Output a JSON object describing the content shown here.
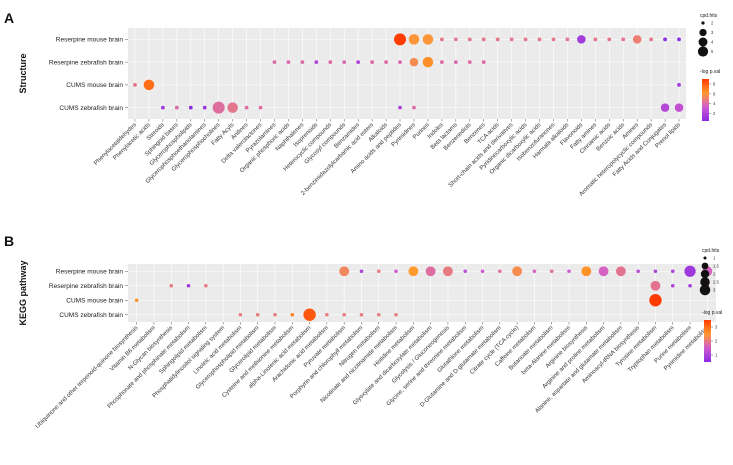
{
  "chart_data": [
    {
      "panel": "A",
      "type": "scatter",
      "ylabel": "Structure",
      "rows": [
        "Reserpine mouse brain",
        "Reserpine zebrafish brain",
        "CUMS mouse brain",
        "CUMS zebrafish brain"
      ],
      "columns": [
        "Phenylacetaldehydes",
        "Phenylacetic acids",
        "Steroids",
        "Sphingoid bases",
        "Glycerophospholipids",
        "Glycerophosphoethanolamines",
        "Glycerophosphocholines",
        "Fatty Acyls",
        "Anilines",
        "Delta valerolactones",
        "Pyrazolamines",
        "Organic phosphoric acids",
        "Naphthalenes",
        "Isoprenoids",
        "Heterocyclic compounds",
        "Glycosyl compounds",
        "Benzamides",
        "2-benzimidazolylcarbamic acid esters",
        "Alkaloids",
        "Amino acids and peptides",
        "Pyrimidines",
        "Purines",
        "Indoles",
        "Beta lactams",
        "Benzenediols",
        "Benzenes",
        "TCA acids",
        "Short-chain acids and derivatives",
        "Pyridinecarboxylic acids",
        "Organic dicarboxylic acids",
        "Isobenzofuranones",
        "Harmala alkaloids",
        "Flavonoids",
        "Fatty amines",
        "Cinnamic acids",
        "Benzoic acids",
        "Amines",
        "Aromatic heteropolycyclic compounds",
        "Fatty Acids and Conjugates",
        "Prenol lipids"
      ],
      "size_legend_title": "cpd.hits",
      "size_legend_values": [
        2,
        3,
        4,
        5
      ],
      "color_legend_title": "-log p.val",
      "color_legend_ticks": [
        2,
        4,
        6,
        8
      ],
      "color_range": [
        0.5,
        9
      ],
      "points": [
        {
          "row": 0,
          "col": 19,
          "hits": 5,
          "logp": 9
        },
        {
          "row": 0,
          "col": 20,
          "hits": 4,
          "logp": 6
        },
        {
          "row": 0,
          "col": 21,
          "hits": 4,
          "logp": 6
        },
        {
          "row": 0,
          "col": 22,
          "hits": 2,
          "logp": 4.5
        },
        {
          "row": 0,
          "col": 23,
          "hits": 2,
          "logp": 4.5
        },
        {
          "row": 0,
          "col": 24,
          "hits": 2,
          "logp": 4.5
        },
        {
          "row": 0,
          "col": 25,
          "hits": 2,
          "logp": 4.5
        },
        {
          "row": 0,
          "col": 26,
          "hits": 2,
          "logp": 4.5
        },
        {
          "row": 0,
          "col": 27,
          "hits": 2,
          "logp": 4.5
        },
        {
          "row": 0,
          "col": 28,
          "hits": 2,
          "logp": 4.5
        },
        {
          "row": 0,
          "col": 29,
          "hits": 2,
          "logp": 4.5
        },
        {
          "row": 0,
          "col": 30,
          "hits": 2,
          "logp": 4.5
        },
        {
          "row": 0,
          "col": 31,
          "hits": 2,
          "logp": 4.5
        },
        {
          "row": 0,
          "col": 32,
          "hits": 3,
          "logp": 1.5
        },
        {
          "row": 0,
          "col": 33,
          "hits": 2,
          "logp": 4.5
        },
        {
          "row": 0,
          "col": 34,
          "hits": 2,
          "logp": 4.5
        },
        {
          "row": 0,
          "col": 35,
          "hits": 2,
          "logp": 4.5
        },
        {
          "row": 0,
          "col": 36,
          "hits": 3,
          "logp": 5
        },
        {
          "row": 0,
          "col": 37,
          "hits": 2,
          "logp": 4.5
        },
        {
          "row": 0,
          "col": 38,
          "hits": 2,
          "logp": 0.5
        },
        {
          "row": 0,
          "col": 39,
          "hits": 2,
          "logp": 0.6
        },
        {
          "row": 1,
          "col": 10,
          "hits": 2,
          "logp": 4
        },
        {
          "row": 1,
          "col": 11,
          "hits": 2,
          "logp": 4
        },
        {
          "row": 1,
          "col": 12,
          "hits": 2,
          "logp": 4
        },
        {
          "row": 1,
          "col": 13,
          "hits": 2,
          "logp": 2
        },
        {
          "row": 1,
          "col": 14,
          "hits": 2,
          "logp": 4
        },
        {
          "row": 1,
          "col": 15,
          "hits": 2,
          "logp": 4
        },
        {
          "row": 1,
          "col": 16,
          "hits": 2,
          "logp": 2
        },
        {
          "row": 1,
          "col": 17,
          "hits": 2,
          "logp": 4
        },
        {
          "row": 1,
          "col": 18,
          "hits": 2,
          "logp": 4
        },
        {
          "row": 1,
          "col": 19,
          "hits": 2,
          "logp": 4
        },
        {
          "row": 1,
          "col": 20,
          "hits": 3,
          "logp": 5.5
        },
        {
          "row": 1,
          "col": 21,
          "hits": 4,
          "logp": 6.5
        },
        {
          "row": 1,
          "col": 22,
          "hits": 2,
          "logp": 4
        },
        {
          "row": 1,
          "col": 23,
          "hits": 2,
          "logp": 4
        },
        {
          "row": 1,
          "col": 24,
          "hits": 2,
          "logp": 4
        },
        {
          "row": 1,
          "col": 25,
          "hits": 2,
          "logp": 4
        },
        {
          "row": 2,
          "col": 0,
          "hits": 2,
          "logp": 4.5
        },
        {
          "row": 2,
          "col": 1,
          "hits": 4,
          "logp": 7.5
        },
        {
          "row": 2,
          "col": 39,
          "hits": 2,
          "logp": 1.5
        },
        {
          "row": 3,
          "col": 2,
          "hits": 2,
          "logp": 1.5
        },
        {
          "row": 3,
          "col": 3,
          "hits": 2,
          "logp": 4
        },
        {
          "row": 3,
          "col": 4,
          "hits": 2,
          "logp": 0.3
        },
        {
          "row": 3,
          "col": 5,
          "hits": 2,
          "logp": 1.2
        },
        {
          "row": 3,
          "col": 6,
          "hits": 5,
          "logp": 4.2
        },
        {
          "row": 3,
          "col": 7,
          "hits": 4,
          "logp": 4.5
        },
        {
          "row": 3,
          "col": 8,
          "hits": 2,
          "logp": 4.2
        },
        {
          "row": 3,
          "col": 9,
          "hits": 2,
          "logp": 4.2
        },
        {
          "row": 3,
          "col": 19,
          "hits": 2,
          "logp": 2
        },
        {
          "row": 3,
          "col": 20,
          "hits": 2,
          "logp": 4
        },
        {
          "row": 3,
          "col": 38,
          "hits": 3,
          "logp": 2.2
        },
        {
          "row": 3,
          "col": 39,
          "hits": 3,
          "logp": 2.8
        }
      ]
    },
    {
      "panel": "B",
      "type": "scatter",
      "ylabel": "KEGG pathway",
      "rows": [
        "Reserpine mouse brain",
        "Reserpine zebrafish brain",
        "CUMS mouse brain",
        "CUMS zebrafish brain"
      ],
      "columns": [
        "Ubiquinone and other terpenoid-quinone biosynthesis",
        "Vitamin B6 metabolism",
        "N-Glycan biosynthesis",
        "Phosphonate and phosphinate metabolism",
        "Sphingolipid metabolism",
        "Phosphatidylinositol signaling system",
        "Linoleic acid metabolism",
        "Glycerophospholipid metabolism",
        "Glycerolipid metabolism",
        "Cysteine and methionine metabolism",
        "alpha-Linolenic acid metabolism",
        "Arachidonic acid metabolism",
        "Pyruvate metabolism",
        "Porphyrin and chlorophyll metabolism",
        "Nitrogen metabolism",
        "Nicotinate and nicotinamide metabolism",
        "Histidine metabolism",
        "Glyoxylate and dicarboxylate metabolism",
        "Glycolysis / Gluconeogenesis",
        "Glycine, serine and threonine metabolism",
        "Glutathione metabolism",
        "D-Glutamine and D-glutamate metabolism",
        "Citrate cycle (TCA cycle)",
        "Caffeine metabolism",
        "Butanoate metabolism",
        "beta-Alanine metabolism",
        "Arginine biosynthesis",
        "Arginine and proline metabolism",
        "Alanine, aspartate and glutamate metabolism",
        "Aminoacyl-tRNA biosynthesis",
        "Tyrosine metabolism",
        "Tryptophan metabolism",
        "Purine metabolism",
        "Pyrimidine metabolism"
      ],
      "size_legend_title": "cpd.hits",
      "size_legend_values": [
        1.0,
        1.5,
        2.0,
        2.5,
        3.0
      ],
      "color_legend_title": "-log p.val",
      "color_legend_ticks": [
        1,
        2,
        3
      ],
      "color_range": [
        0.5,
        3.5
      ],
      "points": [
        {
          "row": 0,
          "col": 12,
          "hits": 2,
          "logp": 2.2
        },
        {
          "row": 0,
          "col": 13,
          "hits": 1,
          "logp": 1.0
        },
        {
          "row": 0,
          "col": 14,
          "hits": 1,
          "logp": 2.0
        },
        {
          "row": 0,
          "col": 15,
          "hits": 1,
          "logp": 1.5
        },
        {
          "row": 0,
          "col": 16,
          "hits": 2,
          "logp": 2.5
        },
        {
          "row": 0,
          "col": 17,
          "hits": 2,
          "logp": 1.8
        },
        {
          "row": 0,
          "col": 18,
          "hits": 2,
          "logp": 2.0
        },
        {
          "row": 0,
          "col": 19,
          "hits": 1,
          "logp": 1.2
        },
        {
          "row": 0,
          "col": 20,
          "hits": 1,
          "logp": 1.5
        },
        {
          "row": 0,
          "col": 21,
          "hits": 1,
          "logp": 1.8
        },
        {
          "row": 0,
          "col": 22,
          "hits": 2,
          "logp": 2.3
        },
        {
          "row": 0,
          "col": 23,
          "hits": 1,
          "logp": 1.6
        },
        {
          "row": 0,
          "col": 24,
          "hits": 1,
          "logp": 1.8
        },
        {
          "row": 0,
          "col": 25,
          "hits": 1,
          "logp": 1.5
        },
        {
          "row": 0,
          "col": 26,
          "hits": 2,
          "logp": 2.6
        },
        {
          "row": 0,
          "col": 27,
          "hits": 2,
          "logp": 1.6
        },
        {
          "row": 0,
          "col": 28,
          "hits": 2,
          "logp": 1.9
        },
        {
          "row": 0,
          "col": 29,
          "hits": 1,
          "logp": 1.2
        },
        {
          "row": 0,
          "col": 30,
          "hits": 1,
          "logp": 1.0
        },
        {
          "row": 0,
          "col": 31,
          "hits": 1,
          "logp": 1.0
        },
        {
          "row": 0,
          "col": 32,
          "hits": 2.5,
          "logp": 0.8
        },
        {
          "row": 0,
          "col": 33,
          "hits": 2,
          "logp": 1.6
        },
        {
          "row": 1,
          "col": 2,
          "hits": 1,
          "logp": 2.0
        },
        {
          "row": 1,
          "col": 3,
          "hits": 1,
          "logp": 0.8
        },
        {
          "row": 1,
          "col": 4,
          "hits": 1,
          "logp": 2.0
        },
        {
          "row": 1,
          "col": 30,
          "hits": 2,
          "logp": 1.9
        },
        {
          "row": 1,
          "col": 31,
          "hits": 1,
          "logp": 1.0
        },
        {
          "row": 1,
          "col": 32,
          "hits": 1,
          "logp": 0.8
        },
        {
          "row": 1,
          "col": 33,
          "hits": 1,
          "logp": 1.6
        },
        {
          "row": 2,
          "col": 0,
          "hits": 1,
          "logp": 2.6
        },
        {
          "row": 2,
          "col": 30,
          "hits": 3,
          "logp": 3.5
        },
        {
          "row": 3,
          "col": 6,
          "hits": 1,
          "logp": 2.0
        },
        {
          "row": 3,
          "col": 7,
          "hits": 1,
          "logp": 2.0
        },
        {
          "row": 3,
          "col": 8,
          "hits": 1,
          "logp": 2.0
        },
        {
          "row": 3,
          "col": 9,
          "hits": 1,
          "logp": 2.8
        },
        {
          "row": 3,
          "col": 10,
          "hits": 3,
          "logp": 3.2
        },
        {
          "row": 3,
          "col": 11,
          "hits": 1,
          "logp": 2.0
        },
        {
          "row": 3,
          "col": 12,
          "hits": 1,
          "logp": 2.0
        },
        {
          "row": 3,
          "col": 13,
          "hits": 1,
          "logp": 2.0
        },
        {
          "row": 3,
          "col": 14,
          "hits": 1,
          "logp": 2.0
        },
        {
          "row": 3,
          "col": 15,
          "hits": 1,
          "logp": 2.0
        }
      ]
    }
  ],
  "colors": {
    "panel_background": "#ebebeb",
    "grid": "#ffffff",
    "color_scale": [
      "#8a2be2",
      "#d05bd0",
      "#ff9a2e",
      "#ff3b00"
    ]
  }
}
